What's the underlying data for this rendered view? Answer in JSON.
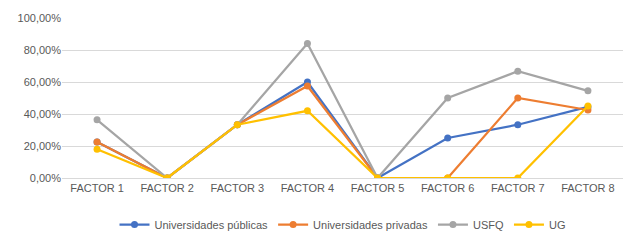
{
  "chart_data": {
    "type": "line",
    "categories": [
      "FACTOR 1",
      "FACTOR 2",
      "FACTOR 3",
      "FACTOR 4",
      "FACTOR 5",
      "FACTOR 6",
      "FACTOR 7",
      "FACTOR 8"
    ],
    "series": [
      {
        "name": "Universidades públicas",
        "color": "#4472C4",
        "values": [
          22.5,
          0,
          33.3,
          60,
          0,
          25,
          33.3,
          44.4
        ]
      },
      {
        "name": "Universidades privadas",
        "color": "#ED7D31",
        "values": [
          22.5,
          0,
          33.3,
          57.5,
          0,
          0,
          50,
          42.5
        ]
      },
      {
        "name": "USFQ",
        "color": "#A5A5A5",
        "values": [
          36.4,
          0,
          33.3,
          84,
          0,
          50,
          66.7,
          54.5
        ]
      },
      {
        "name": "UG",
        "color": "#FFC000",
        "values": [
          18,
          0,
          33.3,
          42,
          0,
          0,
          0,
          45
        ]
      }
    ],
    "ylim": [
      0,
      100
    ],
    "yticks": [
      {
        "value": 0,
        "label": "0,00%"
      },
      {
        "value": 20,
        "label": "20,00%"
      },
      {
        "value": 40,
        "label": "40,00%"
      },
      {
        "value": 60,
        "label": "60,00%"
      },
      {
        "value": 80,
        "label": "80,00%"
      },
      {
        "value": 100,
        "label": "100,00%"
      }
    ],
    "grid": true,
    "legend": "bottom",
    "marker": "circle",
    "line_style": "solid"
  }
}
